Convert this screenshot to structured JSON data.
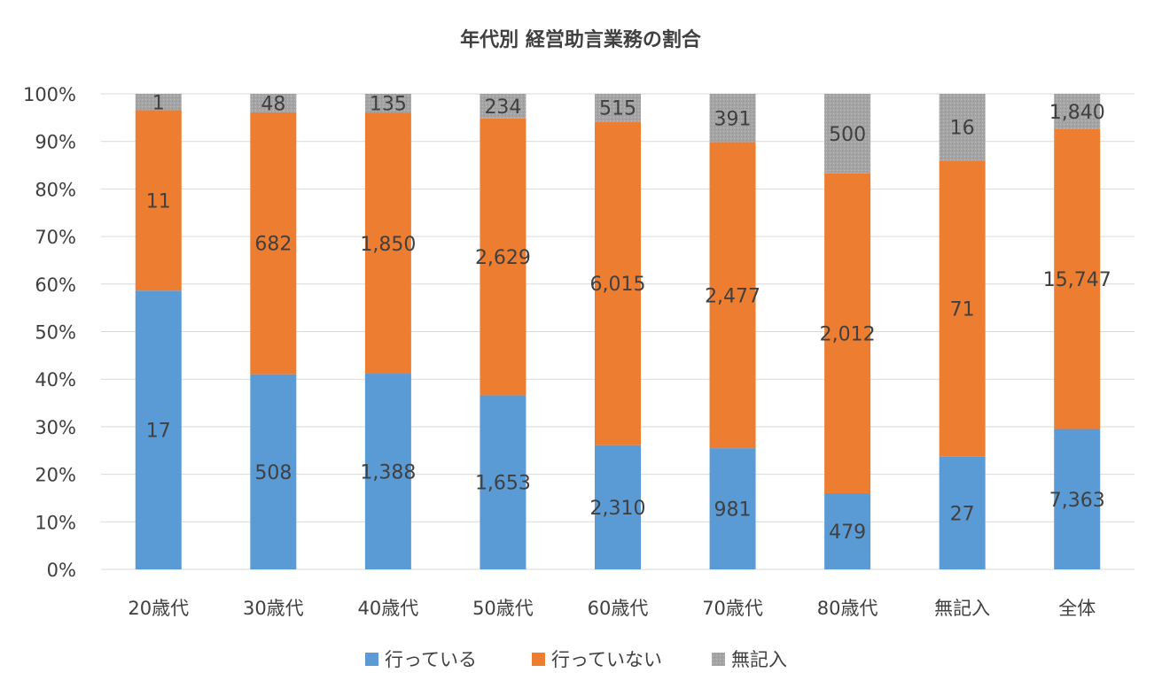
{
  "chart_data": {
    "type": "bar",
    "stacked": "percent",
    "title": "年代別 経営助言業務の割合",
    "categories": [
      "20歳代",
      "30歳代",
      "40歳代",
      "50歳代",
      "60歳代",
      "70歳代",
      "80歳代",
      "無記入",
      "全体"
    ],
    "series": [
      {
        "name": "行っている",
        "color": "#5b9bd5",
        "values": [
          17,
          508,
          1388,
          1653,
          2310,
          981,
          479,
          27,
          7363
        ],
        "labels": [
          "17",
          "508",
          "1,388",
          "1,653",
          "2,310",
          "981",
          "479",
          "27",
          "7,363"
        ]
      },
      {
        "name": "行っていない",
        "color": "#ed7d31",
        "values": [
          11,
          682,
          1850,
          2629,
          6015,
          2477,
          2012,
          71,
          15747
        ],
        "labels": [
          "11",
          "682",
          "1,850",
          "2,629",
          "6,015",
          "2,477",
          "2,012",
          "71",
          "15,747"
        ]
      },
      {
        "name": "無記入",
        "color": "#a5a5a5",
        "values": [
          1,
          48,
          135,
          234,
          515,
          391,
          500,
          16,
          1840
        ],
        "labels": [
          "1",
          "48",
          "135",
          "234",
          "515",
          "391",
          "500",
          "16",
          "1,840"
        ]
      }
    ],
    "y_ticks": [
      "0%",
      "10%",
      "20%",
      "30%",
      "40%",
      "50%",
      "60%",
      "70%",
      "80%",
      "90%",
      "100%"
    ],
    "ylim": [
      0,
      100
    ],
    "grid": true,
    "legend": "bottom"
  }
}
